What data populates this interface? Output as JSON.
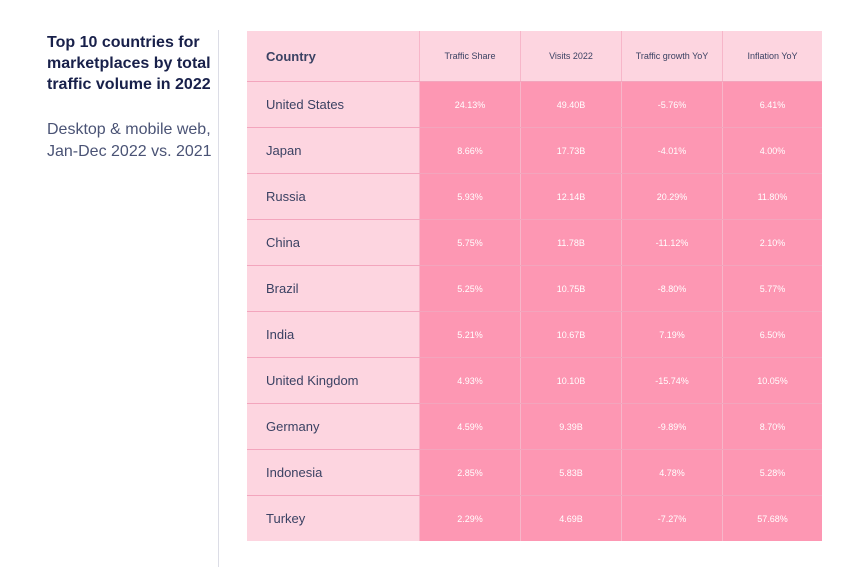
{
  "heading": {
    "title": "Top 10 countries for marketplaces by total traffic volume in 2022",
    "subtitle": "Desktop & mobile web, Jan-Dec 2022 vs. 2021"
  },
  "colors": {
    "header_bg": "#fdd5e0",
    "country_col_bg": "#fdd5e0",
    "metric_bg": "#fd97b3",
    "title_text": "#18204a"
  },
  "chart_data": {
    "type": "table",
    "columns": [
      "Country",
      "Traffic Share",
      "Visits 2022",
      "Traffic growth YoY",
      "Inflation YoY"
    ],
    "rows": [
      [
        "United States",
        "24.13%",
        "49.40B",
        "-5.76%",
        "6.41%"
      ],
      [
        "Japan",
        "8.66%",
        "17.73B",
        "-4.01%",
        "4.00%"
      ],
      [
        "Russia",
        "5.93%",
        "12.14B",
        "20.29%",
        "11.80%"
      ],
      [
        "China",
        "5.75%",
        "11.78B",
        "-11.12%",
        "2.10%"
      ],
      [
        "Brazil",
        "5.25%",
        "10.75B",
        "-8.80%",
        "5.77%"
      ],
      [
        "India",
        "5.21%",
        "10.67B",
        "7.19%",
        "6.50%"
      ],
      [
        "United Kingdom",
        "4.93%",
        "10.10B",
        "-15.74%",
        "10.05%"
      ],
      [
        "Germany",
        "4.59%",
        "9.39B",
        "-9.89%",
        "8.70%"
      ],
      [
        "Indonesia",
        "2.85%",
        "5.83B",
        "4.78%",
        "5.28%"
      ],
      [
        "Turkey",
        "2.29%",
        "4.69B",
        "-7.27%",
        "57.68%"
      ]
    ]
  }
}
